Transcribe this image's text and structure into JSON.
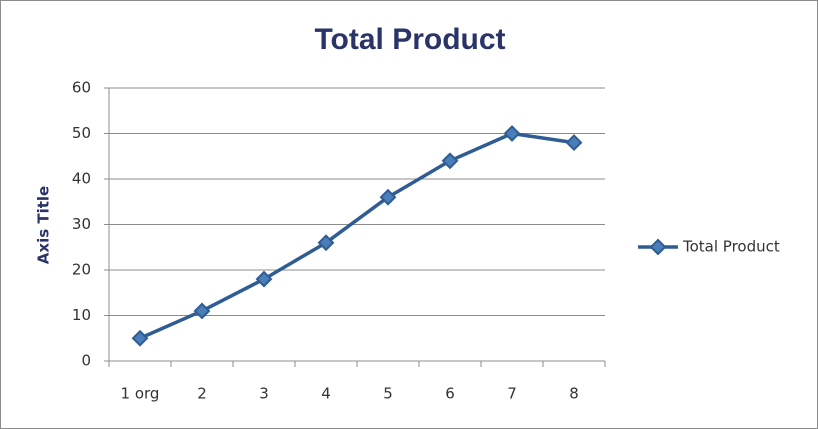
{
  "chart_data": {
    "type": "line",
    "title": "Total Product",
    "y_label": "Axis Title",
    "categories": [
      "1 org",
      "2",
      "3",
      "4",
      "5",
      "6",
      "7",
      "8"
    ],
    "series": [
      {
        "name": "Total Product",
        "color": "#2f5d93",
        "marker_color": "#4a7ebb",
        "values": [
          5,
          11,
          18,
          26,
          36,
          44,
          50,
          48
        ]
      }
    ],
    "ylim": [
      0,
      60
    ],
    "yticks": [
      0,
      10,
      20,
      30,
      40,
      50,
      60
    ],
    "grid": true,
    "legend": "right"
  }
}
